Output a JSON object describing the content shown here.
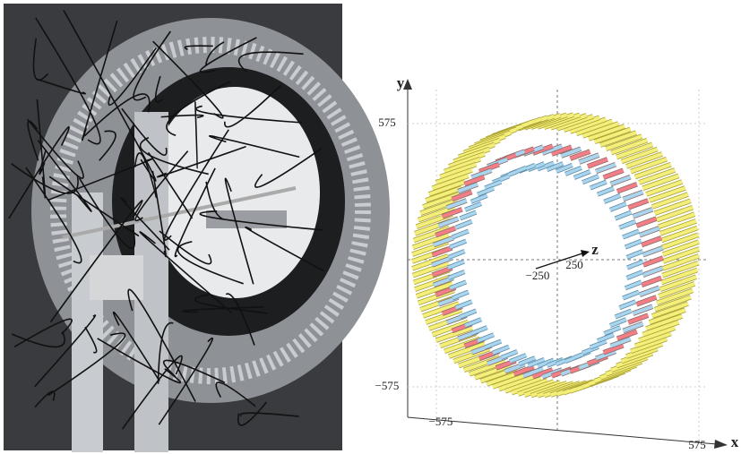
{
  "diagram": {
    "axes": {
      "y": "y",
      "x": "x",
      "z": "z"
    },
    "ticks": {
      "y_top": "575",
      "y_bottom": "−575",
      "x_left": "−575",
      "x_right": "575",
      "z_near": "−250",
      "z_far": "250"
    }
  }
}
